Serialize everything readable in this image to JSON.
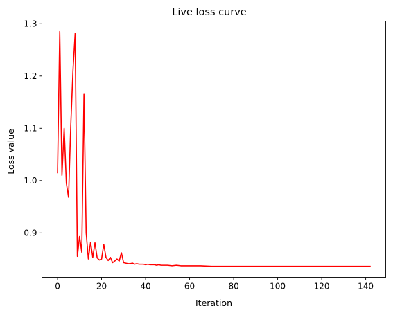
{
  "chart_data": {
    "type": "line",
    "title": "Live loss curve",
    "xlabel": "Iteration",
    "ylabel": "Loss value",
    "xlim": [
      -7.1,
      149.1
    ],
    "ylim": [
      0.815,
      1.305
    ],
    "xticks": [
      0,
      20,
      40,
      60,
      80,
      100,
      120,
      140
    ],
    "yticks": [
      0.9,
      1.0,
      1.1,
      1.2,
      1.3
    ],
    "ytick_labels": [
      "0.9",
      "1.0",
      "1.1",
      "1.2",
      "1.3"
    ],
    "grid": false,
    "legend": null,
    "series": [
      {
        "color": "#ff0000",
        "x": [
          0,
          1,
          2,
          3,
          4,
          5,
          6,
          7,
          8,
          9,
          10,
          11,
          12,
          13,
          14,
          15,
          16,
          17,
          18,
          19,
          20,
          21,
          22,
          23,
          24,
          25,
          26,
          27,
          28,
          29,
          30,
          31,
          32,
          33,
          34,
          35,
          36,
          37,
          38,
          39,
          40,
          41,
          42,
          43,
          44,
          45,
          46,
          47,
          48,
          49,
          50,
          52,
          54,
          56,
          58,
          60,
          65,
          70,
          80,
          90,
          100,
          110,
          120,
          130,
          142
        ],
        "y": [
          1.015,
          1.285,
          1.01,
          1.1,
          0.995,
          0.968,
          1.105,
          1.21,
          1.282,
          0.855,
          0.893,
          0.863,
          1.165,
          0.9,
          0.85,
          0.882,
          0.853,
          0.881,
          0.852,
          0.848,
          0.85,
          0.878,
          0.853,
          0.847,
          0.853,
          0.843,
          0.846,
          0.85,
          0.846,
          0.862,
          0.843,
          0.842,
          0.841,
          0.841,
          0.842,
          0.84,
          0.841,
          0.84,
          0.84,
          0.84,
          0.839,
          0.84,
          0.839,
          0.839,
          0.839,
          0.838,
          0.839,
          0.838,
          0.838,
          0.838,
          0.838,
          0.837,
          0.838,
          0.837,
          0.837,
          0.837,
          0.837,
          0.836,
          0.836,
          0.836,
          0.836,
          0.836,
          0.836,
          0.836,
          0.836
        ]
      }
    ]
  }
}
